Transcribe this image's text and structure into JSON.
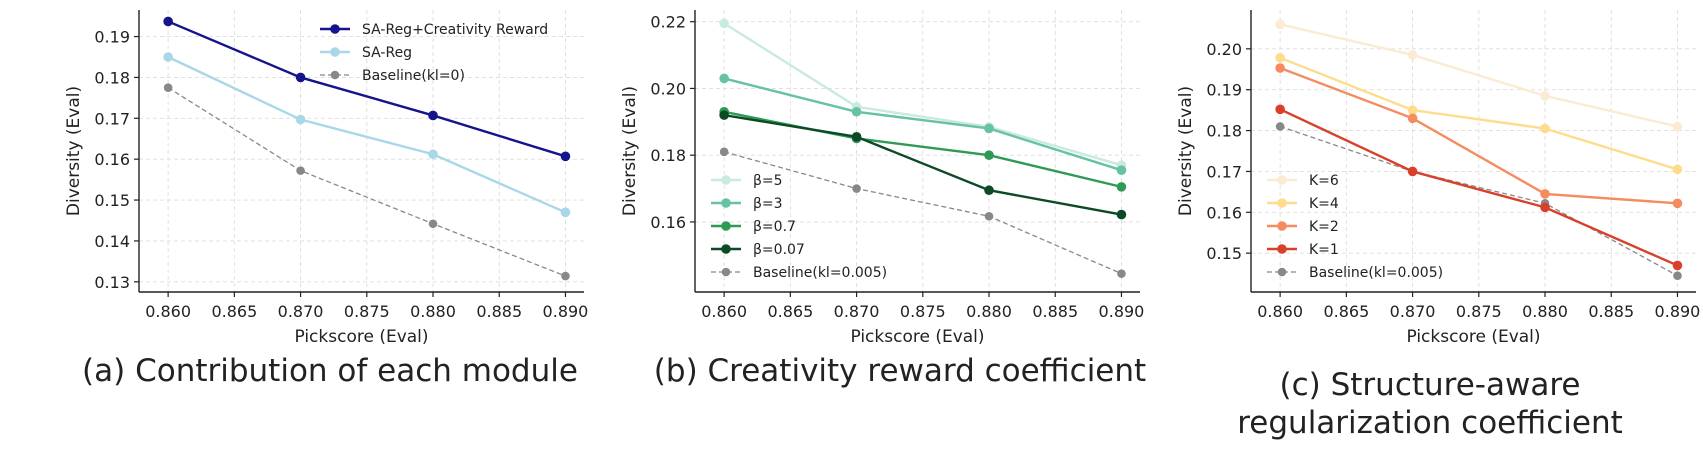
{
  "chart_data": [
    {
      "type": "line",
      "caption": "(a) Contribution of each module",
      "xlabel": "Pickscore (Eval)",
      "ylabel": "Diversity (Eval)",
      "x": [
        0.86,
        0.87,
        0.88,
        0.89
      ],
      "xticks": [
        "0.860",
        "0.865",
        "0.870",
        "0.875",
        "0.880",
        "0.885",
        "0.890"
      ],
      "yticks": [
        "0.13",
        "0.14",
        "0.15",
        "0.16",
        "0.17",
        "0.18",
        "0.19"
      ],
      "xlim": [
        0.8578,
        0.8914
      ],
      "ylim": [
        0.1275,
        0.1965
      ],
      "grid": true,
      "legend_position": "top-right",
      "series": [
        {
          "name": "SA-Reg+Creativity Reward",
          "values": [
            0.1937,
            0.18,
            0.1707,
            0.1607
          ],
          "color": "#14148c",
          "style": "solid"
        },
        {
          "name": "SA-Reg",
          "values": [
            0.185,
            0.1697,
            0.1612,
            0.147
          ],
          "color": "#a8d8e8",
          "style": "solid"
        },
        {
          "name": "Baseline(kl=0)",
          "values": [
            0.1775,
            0.1572,
            0.1442,
            0.1314
          ],
          "color": "#888888",
          "style": "dashed"
        }
      ]
    },
    {
      "type": "line",
      "caption": "(b) Creativity reward coefficient",
      "xlabel": "Pickscore (Eval)",
      "ylabel": "Diversity (Eval)",
      "x": [
        0.86,
        0.87,
        0.88,
        0.89
      ],
      "xticks": [
        "0.860",
        "0.865",
        "0.870",
        "0.875",
        "0.880",
        "0.885",
        "0.890"
      ],
      "yticks": [
        "0.16",
        "0.18",
        "0.20",
        "0.22"
      ],
      "xlim": [
        0.8578,
        0.8914
      ],
      "ylim": [
        0.139,
        0.2235
      ],
      "grid": true,
      "legend_position": "bottom-left",
      "series": [
        {
          "name": "β=5",
          "values": [
            0.2195,
            0.1945,
            0.1885,
            0.177
          ],
          "color": "#c8ebdd",
          "style": "solid"
        },
        {
          "name": "β=3",
          "values": [
            0.203,
            0.193,
            0.188,
            0.1755
          ],
          "color": "#66c2a0",
          "style": "solid"
        },
        {
          "name": "β=0.7",
          "values": [
            0.193,
            0.185,
            0.18,
            0.1705
          ],
          "color": "#2e9a55",
          "style": "solid"
        },
        {
          "name": "β=0.07",
          "values": [
            0.192,
            0.1855,
            0.1695,
            0.1622
          ],
          "color": "#0c4a25",
          "style": "solid"
        },
        {
          "name": "Baseline(kl=0.005)",
          "values": [
            0.181,
            0.17,
            0.1617,
            0.1445
          ],
          "color": "#888888",
          "style": "dashed"
        }
      ]
    },
    {
      "type": "line",
      "caption_lines": [
        "(c) Structure-aware",
        "regularization coefficient"
      ],
      "xlabel": "Pickscore (Eval)",
      "ylabel": "Diversity (Eval)",
      "x": [
        0.86,
        0.87,
        0.88,
        0.89
      ],
      "xticks": [
        "0.860",
        "0.865",
        "0.870",
        "0.875",
        "0.880",
        "0.885",
        "0.890"
      ],
      "yticks": [
        "0.15",
        "0.16",
        "0.17",
        "0.18",
        "0.19",
        "0.20"
      ],
      "xlim": [
        0.8578,
        0.8914
      ],
      "ylim": [
        0.1405,
        0.2095
      ],
      "grid": true,
      "legend_position": "bottom-left",
      "series": [
        {
          "name": "K=6",
          "values": [
            0.206,
            0.1985,
            0.1885,
            0.181
          ],
          "color": "#fcebd4",
          "style": "solid"
        },
        {
          "name": "K=4",
          "values": [
            0.1978,
            0.185,
            0.1805,
            0.1705
          ],
          "color": "#fddc8c",
          "style": "solid"
        },
        {
          "name": "K=2",
          "values": [
            0.1953,
            0.183,
            0.1645,
            0.1622
          ],
          "color": "#f58c60",
          "style": "solid"
        },
        {
          "name": "K=1",
          "values": [
            0.1852,
            0.17,
            0.1612,
            0.147
          ],
          "color": "#d9402b",
          "style": "solid"
        },
        {
          "name": "Baseline(kl=0.005)",
          "values": [
            0.181,
            0.17,
            0.1622,
            0.1445
          ],
          "color": "#888888",
          "style": "dashed"
        }
      ]
    }
  ]
}
